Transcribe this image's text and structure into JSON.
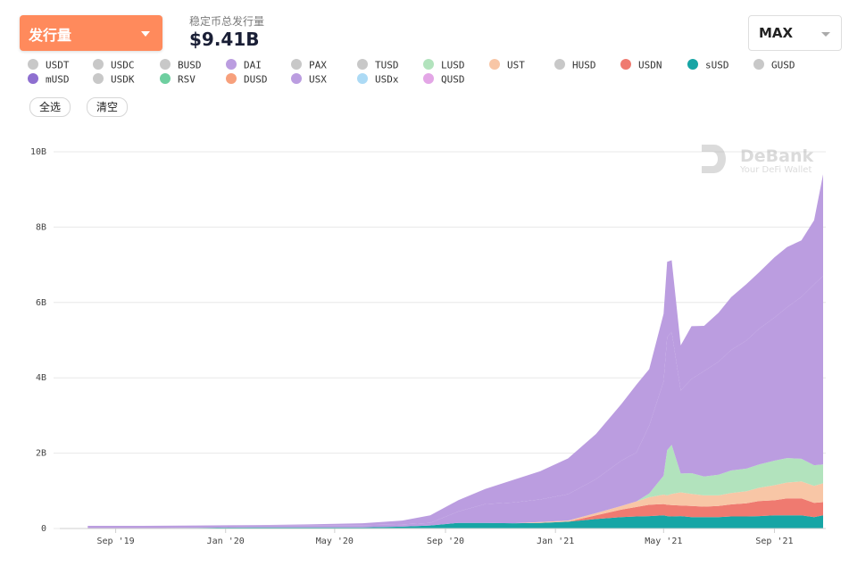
{
  "header": {
    "metric_label": "发行量",
    "total_label": "稳定币总发行量",
    "total_value": "$9.41B",
    "range_label": "MAX"
  },
  "legend": {
    "rows": [
      [
        {
          "name": "USDT",
          "color": "#c8c8c8"
        },
        {
          "name": "USDC",
          "color": "#c8c8c8"
        },
        {
          "name": "BUSD",
          "color": "#c8c8c8"
        },
        {
          "name": "DAI",
          "color": "#bb9de0"
        },
        {
          "name": "PAX",
          "color": "#c8c8c8"
        },
        {
          "name": "TUSD",
          "color": "#c8c8c8"
        },
        {
          "name": "LUSD",
          "color": "#b2e3bd"
        },
        {
          "name": "UST",
          "color": "#f8c6a6"
        },
        {
          "name": "HUSD",
          "color": "#c8c8c8"
        },
        {
          "name": "USDN",
          "color": "#ef7a70"
        },
        {
          "name": "sUSD",
          "color": "#17a5a5"
        },
        {
          "name": "GUSD",
          "color": "#c8c8c8"
        }
      ],
      [
        {
          "name": "mUSD",
          "color": "#8e6fd0"
        },
        {
          "name": "USDK",
          "color": "#c8c8c8"
        },
        {
          "name": "RSV",
          "color": "#6ecfa0"
        },
        {
          "name": "DUSD",
          "color": "#f7a07c"
        },
        {
          "name": "USX",
          "color": "#bb9de0"
        },
        {
          "name": "USDx",
          "color": "#acdaf5"
        },
        {
          "name": "QUSD",
          "color": "#e3a6e6"
        }
      ]
    ],
    "select_all": "全选",
    "clear": "清空"
  },
  "watermark": {
    "brand": "DeBank",
    "tagline": "Your DeFi Wallet"
  },
  "chart_data": {
    "type": "area",
    "stacked": true,
    "title": "",
    "xlabel": "",
    "ylabel": "",
    "ylim": [
      0,
      10
    ],
    "y_unit": "B",
    "y_ticks": [
      "0",
      "2B",
      "4B",
      "6B",
      "8B",
      "10B"
    ],
    "x_ticks": [
      "Sep '19",
      "Jan '20",
      "May '20",
      "Sep '20",
      "Jan '21",
      "May '21",
      "Sep '21"
    ],
    "x": [
      "2019-08-01",
      "2019-10-01",
      "2019-12-01",
      "2020-02-01",
      "2020-04-01",
      "2020-06-01",
      "2020-07-15",
      "2020-08-15",
      "2020-09-15",
      "2020-10-15",
      "2020-11-15",
      "2020-12-15",
      "2021-01-15",
      "2021-02-15",
      "2021-03-15",
      "2021-04-01",
      "2021-04-15",
      "2021-05-01",
      "2021-05-05",
      "2021-05-10",
      "2021-05-20",
      "2021-06-01",
      "2021-06-15",
      "2021-07-01",
      "2021-07-15",
      "2021-08-01",
      "2021-08-15",
      "2021-09-01",
      "2021-09-15",
      "2021-10-01",
      "2021-10-15",
      "2021-10-25"
    ],
    "series": [
      {
        "name": "sUSD",
        "color": "#17a5a5",
        "values": [
          0.01,
          0.01,
          0.02,
          0.03,
          0.03,
          0.03,
          0.05,
          0.08,
          0.15,
          0.15,
          0.14,
          0.15,
          0.18,
          0.25,
          0.3,
          0.32,
          0.33,
          0.35,
          0.33,
          0.32,
          0.33,
          0.3,
          0.3,
          0.3,
          0.32,
          0.32,
          0.33,
          0.35,
          0.35,
          0.35,
          0.3,
          0.35
        ]
      },
      {
        "name": "USDN",
        "color": "#ef7a70",
        "values": [
          0,
          0,
          0,
          0,
          0,
          0,
          0,
          0,
          0,
          0,
          0,
          0,
          0,
          0.1,
          0.2,
          0.25,
          0.3,
          0.3,
          0.3,
          0.3,
          0.28,
          0.3,
          0.28,
          0.3,
          0.32,
          0.35,
          0.4,
          0.4,
          0.45,
          0.45,
          0.38,
          0.35
        ]
      },
      {
        "name": "UST",
        "color": "#f8c6a6",
        "values": [
          0,
          0,
          0,
          0,
          0,
          0,
          0,
          0,
          0,
          0,
          0,
          0.02,
          0.03,
          0.06,
          0.1,
          0.15,
          0.2,
          0.25,
          0.25,
          0.3,
          0.35,
          0.32,
          0.3,
          0.28,
          0.3,
          0.32,
          0.35,
          0.4,
          0.42,
          0.45,
          0.45,
          0.5
        ]
      },
      {
        "name": "LUSD",
        "color": "#b2e3bd",
        "values": [
          0,
          0,
          0,
          0,
          0,
          0,
          0,
          0,
          0,
          0,
          0,
          0,
          0,
          0,
          0,
          0,
          0.1,
          0.5,
          1.2,
          1.3,
          0.5,
          0.55,
          0.5,
          0.55,
          0.6,
          0.6,
          0.62,
          0.65,
          0.65,
          0.6,
          0.55,
          0.5
        ]
      },
      {
        "name": "DAI",
        "color": "#bb9de0",
        "values": [
          0.06,
          0.06,
          0.06,
          0.06,
          0.06,
          0.06,
          0.06,
          0.07,
          0.3,
          0.5,
          0.55,
          0.6,
          0.7,
          0.9,
          1.2,
          1.3,
          1.8,
          2.5,
          3.0,
          3.0,
          2.2,
          2.5,
          2.8,
          3.0,
          3.2,
          3.4,
          3.6,
          3.8,
          4.0,
          4.3,
          4.8,
          5.0
        ]
      },
      {
        "name": "USX",
        "color": "#bb9de0",
        "values": [
          0,
          0,
          0,
          0,
          0.02,
          0.05,
          0.1,
          0.2,
          0.3,
          0.4,
          0.6,
          0.75,
          0.95,
          1.2,
          1.5,
          1.8,
          1.5,
          1.8,
          2.0,
          1.9,
          1.2,
          1.4,
          1.2,
          1.3,
          1.4,
          1.5,
          1.5,
          1.6,
          1.6,
          1.5,
          1.7,
          2.7
        ]
      }
    ]
  }
}
